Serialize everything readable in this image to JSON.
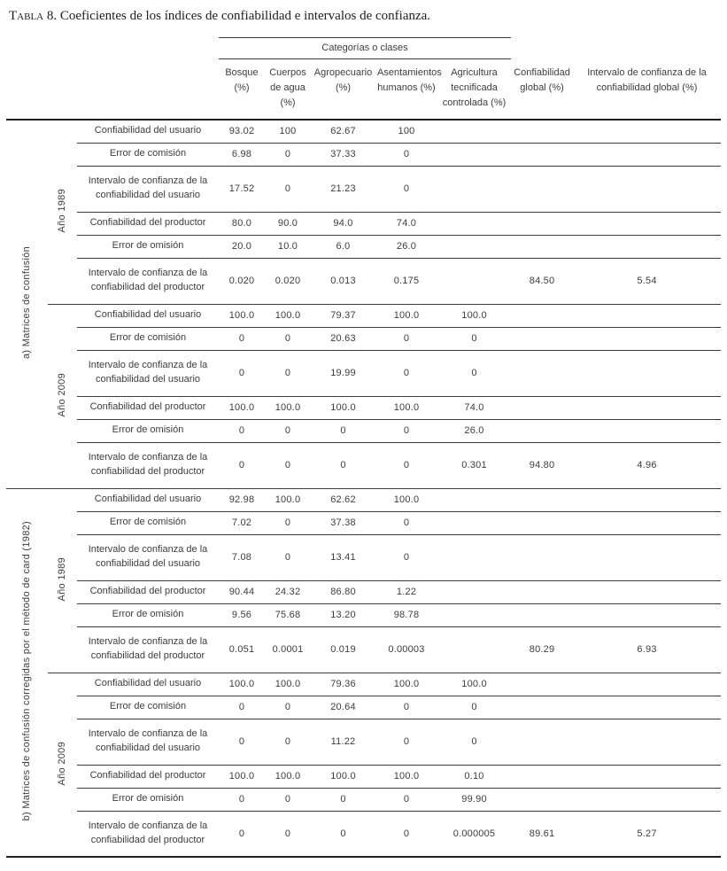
{
  "caption": {
    "label": "Tabla 8.",
    "text": "Coeficientes de los índices de confiabilidad e intervalos de confianza."
  },
  "table": {
    "span_header": "Categorías o clases",
    "columns": [
      "Bosque (%)",
      "Cuerpos de agua (%)",
      "Agropecuario (%)",
      "Asentamientos humanos (%)",
      "Agricultura tecnificada controlada (%)",
      "Confiabilidad global (%)",
      "Intervalo de confianza de la confiabilidad global (%)"
    ],
    "sections": [
      {
        "label": "a) Matrices de confusión",
        "years": [
          {
            "label": "Año 1989",
            "rows": [
              {
                "label": "Confiabilidad del usuario",
                "values": [
                  "93.02",
                  "100",
                  "62.67",
                  "100",
                  "",
                  "",
                  ""
                ]
              },
              {
                "label": "Error de comisión",
                "values": [
                  "6.98",
                  "0",
                  "37.33",
                  "0",
                  "",
                  "",
                  ""
                ]
              },
              {
                "label": "Intervalo de confianza de la confiabilidad del usuario",
                "values": [
                  "17.52",
                  "0",
                  "21.23",
                  "0",
                  "",
                  "",
                  ""
                ]
              },
              {
                "label": "Confiabilidad del productor",
                "values": [
                  "80.0",
                  "90.0",
                  "94.0",
                  "74.0",
                  "",
                  "",
                  ""
                ]
              },
              {
                "label": "Error de omisión",
                "values": [
                  "20.0",
                  "10.0",
                  "6.0",
                  "26.0",
                  "",
                  "",
                  ""
                ]
              },
              {
                "label": "Intervalo de confianza de la confiabilidad del productor",
                "values": [
                  "0.020",
                  "0.020",
                  "0.013",
                  "0.175",
                  "",
                  "84.50",
                  "5.54"
                ]
              }
            ]
          },
          {
            "label": "Año 2009",
            "rows": [
              {
                "label": "Confiabilidad del usuario",
                "values": [
                  "100.0",
                  "100.0",
                  "79.37",
                  "100.0",
                  "100.0",
                  "",
                  ""
                ]
              },
              {
                "label": "Error de comisión",
                "values": [
                  "0",
                  "0",
                  "20.63",
                  "0",
                  "0",
                  "",
                  ""
                ]
              },
              {
                "label": "Intervalo de confianza de la confiabilidad del usuario",
                "values": [
                  "0",
                  "0",
                  "19.99",
                  "0",
                  "0",
                  "",
                  ""
                ]
              },
              {
                "label": "Confiabilidad del productor",
                "values": [
                  "100.0",
                  "100.0",
                  "100.0",
                  "100.0",
                  "74.0",
                  "",
                  ""
                ]
              },
              {
                "label": "Error de omisión",
                "values": [
                  "0",
                  "0",
                  "0",
                  "0",
                  "26.0",
                  "",
                  ""
                ]
              },
              {
                "label": "Intervalo de confianza de la confiabilidad del productor",
                "values": [
                  "0",
                  "0",
                  "0",
                  "0",
                  "0.301",
                  "94.80",
                  "4.96"
                ]
              }
            ]
          }
        ]
      },
      {
        "label": "b) Matrices de confusión corregidas por el método de card (1982)",
        "years": [
          {
            "label": "Año 1989",
            "rows": [
              {
                "label": "Confiabilidad del usuario",
                "values": [
                  "92.98",
                  "100.0",
                  "62.62",
                  "100.0",
                  "",
                  "",
                  ""
                ]
              },
              {
                "label": "Error de comisión",
                "values": [
                  "7.02",
                  "0",
                  "37.38",
                  "0",
                  "",
                  "",
                  ""
                ]
              },
              {
                "label": "Intervalo de confianza de la confiabilidad del usuario",
                "values": [
                  "7.08",
                  "0",
                  "13.41",
                  "0",
                  "",
                  "",
                  ""
                ]
              },
              {
                "label": "Confiabilidad del productor",
                "values": [
                  "90.44",
                  "24.32",
                  "86.80",
                  "1.22",
                  "",
                  "",
                  ""
                ]
              },
              {
                "label": "Error de omisión",
                "values": [
                  "9.56",
                  "75.68",
                  "13.20",
                  "98.78",
                  "",
                  "",
                  ""
                ]
              },
              {
                "label": "Intervalo de confianza de la confiabilidad del productor",
                "values": [
                  "0.051",
                  "0.0001",
                  "0.019",
                  "0.00003",
                  "",
                  "80.29",
                  "6.93"
                ]
              }
            ]
          },
          {
            "label": "Año 2009",
            "rows": [
              {
                "label": "Confiabilidad del usuario",
                "values": [
                  "100.0",
                  "100.0",
                  "79.36",
                  "100.0",
                  "100.0",
                  "",
                  ""
                ]
              },
              {
                "label": "Error de comisión",
                "values": [
                  "0",
                  "0",
                  "20.64",
                  "0",
                  "0",
                  "",
                  ""
                ]
              },
              {
                "label": "Intervalo de confianza de la confiabilidad del usuario",
                "values": [
                  "0",
                  "0",
                  "11.22",
                  "0",
                  "0",
                  "",
                  ""
                ]
              },
              {
                "label": "Confiabilidad del productor",
                "values": [
                  "100.0",
                  "100.0",
                  "100.0",
                  "100.0",
                  "0.10",
                  "",
                  ""
                ]
              },
              {
                "label": "Error de omisión",
                "values": [
                  "0",
                  "0",
                  "0",
                  "0",
                  "99.90",
                  "",
                  ""
                ]
              },
              {
                "label": "Intervalo de confianza de la confiabilidad del productor",
                "values": [
                  "0",
                  "0",
                  "0",
                  "0",
                  "0.000005",
                  "89.61",
                  "5.27"
                ]
              }
            ]
          }
        ]
      }
    ]
  },
  "colors": {
    "background": "#ffffff",
    "text": "#3d3d3d",
    "caption_text": "#1c1c1c",
    "rule_thin": "#3a3a3a",
    "rule_thick": "#1f1f1f"
  }
}
